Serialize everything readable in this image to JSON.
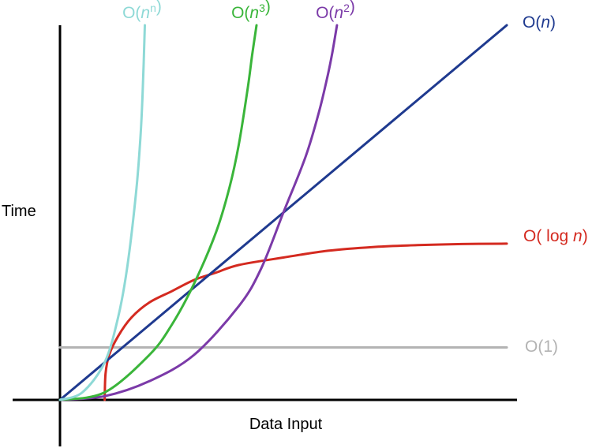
{
  "chart_data": {
    "type": "line",
    "title": "",
    "xlabel": "Data Input",
    "ylabel": "Time",
    "xlim": [
      0,
      1
    ],
    "ylim": [
      0,
      1
    ],
    "grid": false,
    "legend": "none",
    "tick_labels": false,
    "series": [
      {
        "name": "O(1)",
        "label_parts": [
          {
            "t": "O(1)"
          }
        ],
        "color": "#b3b3b3",
        "x": [
          0.0,
          1.0
        ],
        "y": [
          0.14,
          0.14
        ]
      },
      {
        "name": "O( log n)",
        "label_parts": [
          {
            "t": "O( log "
          },
          {
            "t": "n",
            "i": true
          },
          {
            "t": ")"
          }
        ],
        "color": "#d42a20",
        "x": [
          0.1,
          0.102,
          0.11,
          0.13,
          0.16,
          0.2,
          0.25,
          0.3,
          0.35,
          0.4,
          0.5,
          0.6,
          0.7,
          0.8,
          0.9,
          1.0
        ],
        "y": [
          0.0,
          0.07,
          0.12,
          0.17,
          0.22,
          0.26,
          0.29,
          0.32,
          0.34,
          0.36,
          0.38,
          0.398,
          0.408,
          0.413,
          0.416,
          0.417
        ]
      },
      {
        "name": "O(n)",
        "label_parts": [
          {
            "t": "O("
          },
          {
            "t": "n",
            "i": true
          },
          {
            "t": ")"
          }
        ],
        "color": "#1f3a8f",
        "x": [
          0.0,
          1.0
        ],
        "y": [
          0.0,
          1.0
        ]
      },
      {
        "name": "O(n2)",
        "label_parts": [
          {
            "t": "O("
          },
          {
            "t": "n",
            "i": true
          },
          {
            "t": "2",
            "s": true
          },
          {
            "t": ")"
          }
        ],
        "color": "#7b3aa8",
        "x": [
          0.0,
          0.1,
          0.2,
          0.3,
          0.4,
          0.45,
          0.5,
          0.55,
          0.58,
          0.6,
          0.61,
          0.62
        ],
        "y": [
          0.0,
          0.01,
          0.05,
          0.12,
          0.25,
          0.35,
          0.5,
          0.65,
          0.77,
          0.87,
          0.93,
          1.0
        ]
      },
      {
        "name": "O(n3)",
        "label_parts": [
          {
            "t": "O("
          },
          {
            "t": "n",
            "i": true
          },
          {
            "t": "3",
            "s": true
          },
          {
            "t": ")"
          }
        ],
        "color": "#3ab53a",
        "x": [
          0.0,
          0.1,
          0.2,
          0.25,
          0.3,
          0.35,
          0.38,
          0.4,
          0.42,
          0.43,
          0.44
        ],
        "y": [
          0.0,
          0.02,
          0.12,
          0.2,
          0.31,
          0.45,
          0.57,
          0.68,
          0.83,
          0.92,
          1.0
        ]
      },
      {
        "name": "O(nn)",
        "label_parts": [
          {
            "t": "O("
          },
          {
            "t": "n",
            "i": true
          },
          {
            "t": "n",
            "s": true
          },
          {
            "t": ")"
          }
        ],
        "color": "#8ed9d6",
        "x": [
          0.0,
          0.05,
          0.1,
          0.13,
          0.15,
          0.17,
          0.18,
          0.185,
          0.19
        ],
        "y": [
          0.0,
          0.02,
          0.1,
          0.22,
          0.35,
          0.55,
          0.7,
          0.82,
          1.0
        ]
      }
    ]
  }
}
